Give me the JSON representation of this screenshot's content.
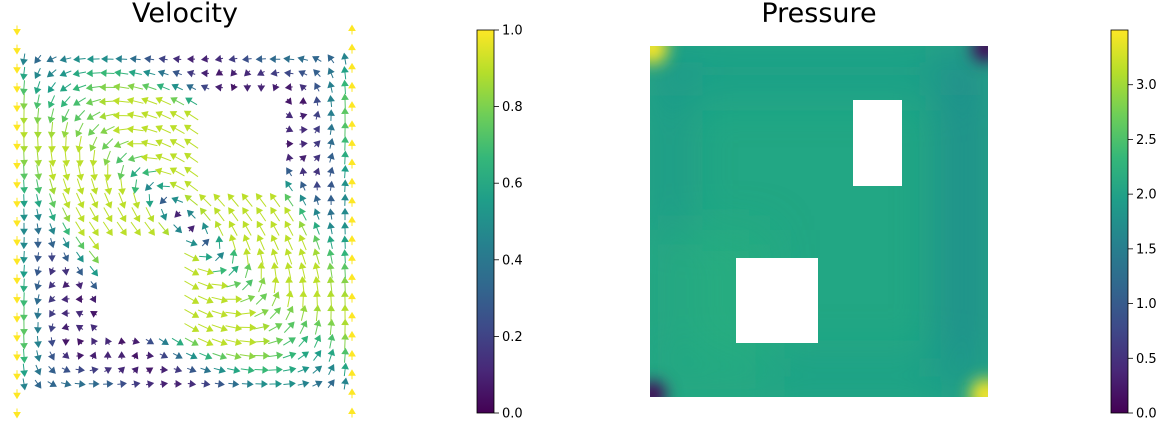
{
  "chart_data": [
    {
      "type": "quiver",
      "title": "Velocity",
      "xlim": [
        0,
        1
      ],
      "ylim": [
        0,
        1
      ],
      "axes_visible": false,
      "colormap": "viridis",
      "colorbar": {
        "range": [
          0.0,
          1.0
        ],
        "ticks": [
          0.0,
          0.2,
          0.4,
          0.6,
          0.8,
          1.0
        ],
        "tick_labels": [
          "0.0",
          "0.2",
          "0.4",
          "0.6",
          "0.8",
          "1.0"
        ]
      },
      "boundary_speed": 1.0,
      "obstacles": [
        {
          "x": [
            0.23,
            0.52
          ],
          "y": [
            0.17,
            0.45
          ]
        },
        {
          "x": [
            0.56,
            0.79
          ],
          "y": [
            0.57,
            0.89
          ]
        }
      ]
    },
    {
      "type": "heatmap",
      "title": "Pressure",
      "xlim": [
        0,
        1
      ],
      "ylim": [
        0,
        1
      ],
      "axes_visible": false,
      "colormap": "viridis",
      "colorbar": {
        "range": [
          0.0,
          3.5
        ],
        "ticks": [
          0.0,
          0.5,
          1.0,
          1.5,
          2.0,
          2.5,
          3.0
        ],
        "tick_labels": [
          "0.0",
          "0.5",
          "1.0",
          "1.5",
          "2.0",
          "2.5",
          "3.0"
        ]
      },
      "background_value": 2.2,
      "corner_values": {
        "top_left": 3.5,
        "top_right": 0.3,
        "bottom_left": 0.3,
        "bottom_right": 3.5
      },
      "obstacles": [
        {
          "x": [
            0.25,
            0.5
          ],
          "y": [
            0.15,
            0.4
          ]
        },
        {
          "x": [
            0.6,
            0.75
          ],
          "y": [
            0.6,
            0.85
          ]
        }
      ]
    }
  ]
}
